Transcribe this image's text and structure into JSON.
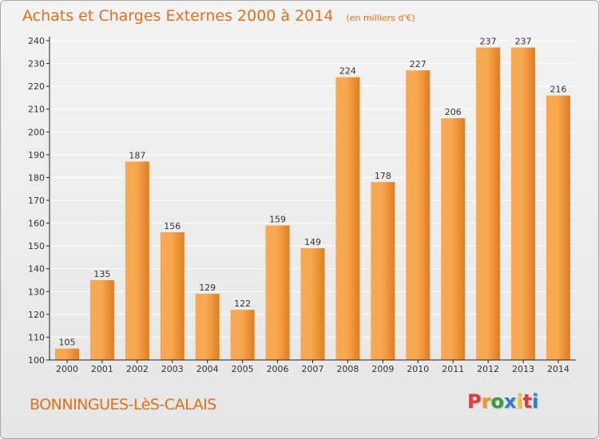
{
  "title": "Achats et Charges Externes 2000 à 2014",
  "subtitle": "(en milliers d'€)",
  "place": "BONNINGUES-LèS-CALAIS",
  "logo": {
    "text": "Proxiti",
    "colors": [
      "#e23b3b",
      "#f29a1f",
      "#3b9b3b",
      "#2d7fd0",
      "#f2c21f",
      "#e23b3b",
      "#2d7fd0"
    ]
  },
  "colors": {
    "bar_light": "#f7a851",
    "bar_dark": "#e37c1f",
    "axis": "#222222",
    "grid": "#ffffff",
    "accent": "#e0701a"
  },
  "chart_data": {
    "type": "bar",
    "categories": [
      "2000",
      "2001",
      "2002",
      "2003",
      "2004",
      "2005",
      "2006",
      "2007",
      "2008",
      "2009",
      "2010",
      "2011",
      "2012",
      "2013",
      "2014"
    ],
    "values": [
      105,
      135,
      187,
      156,
      129,
      122,
      159,
      149,
      224,
      178,
      227,
      206,
      237,
      237,
      216
    ],
    "ylim": [
      100,
      240
    ],
    "yticks": [
      100,
      110,
      120,
      130,
      140,
      150,
      160,
      170,
      180,
      190,
      200,
      210,
      220,
      230,
      240
    ],
    "grid": true,
    "data_labels": true
  }
}
